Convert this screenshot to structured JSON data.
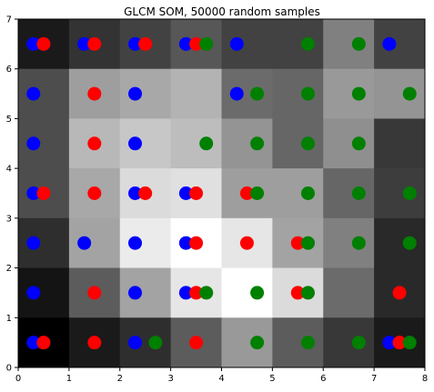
{
  "chart_data": {
    "type": "heatmap",
    "title": "GLCM SOM, 50000 random samples",
    "xlabel": "",
    "ylabel": "",
    "xlim": [
      0,
      8
    ],
    "ylim": [
      0,
      7
    ],
    "xticks": [
      "0",
      "1",
      "2",
      "3",
      "4",
      "5",
      "6",
      "7",
      "8"
    ],
    "yticks": [
      "0",
      "1",
      "2",
      "3",
      "4",
      "5",
      "6",
      "7"
    ],
    "grid": false,
    "colormap": "gray",
    "cells": [
      [
        0.1,
        0.2,
        0.26,
        0.34,
        0.26,
        0.26,
        0.5,
        0.26
      ],
      [
        0.3,
        0.62,
        0.66,
        0.7,
        0.42,
        0.4,
        0.6,
        0.58
      ],
      [
        0.3,
        0.72,
        0.78,
        0.74,
        0.58,
        0.4,
        0.56,
        0.22
      ],
      [
        0.3,
        0.66,
        0.86,
        0.88,
        0.62,
        0.62,
        0.4,
        0.24
      ],
      [
        0.18,
        0.64,
        0.92,
        1.0,
        0.9,
        0.64,
        0.5,
        0.16
      ],
      [
        0.08,
        0.36,
        0.64,
        0.9,
        1.0,
        0.86,
        0.42,
        0.16
      ],
      [
        0.0,
        0.1,
        0.18,
        0.36,
        0.6,
        0.36,
        0.22,
        0.1
      ]
    ],
    "series": [
      {
        "color": "#0000ff",
        "x": [
          0.3,
          1.3,
          2.3,
          3.3,
          4.3,
          7.3,
          0.3,
          2.3,
          4.3,
          0.3,
          2.3,
          0.3,
          2.3,
          3.3,
          0.3,
          1.3,
          2.3,
          3.3,
          0.3,
          2.3,
          3.3,
          0.3,
          2.3,
          7.3
        ],
        "y": [
          6.5,
          6.5,
          6.5,
          6.5,
          6.5,
          6.5,
          5.5,
          5.5,
          5.5,
          4.5,
          4.5,
          3.5,
          3.5,
          3.5,
          2.5,
          2.5,
          2.5,
          2.5,
          1.5,
          1.5,
          1.5,
          0.5,
          0.5,
          0.5
        ]
      },
      {
        "color": "#ff0000",
        "x": [
          0.5,
          1.5,
          2.5,
          3.5,
          1.5,
          1.5,
          0.5,
          1.5,
          2.5,
          3.5,
          4.5,
          3.5,
          4.5,
          5.5,
          1.5,
          3.5,
          5.5,
          7.5,
          0.5,
          1.5,
          3.5,
          7.5
        ],
        "y": [
          6.5,
          6.5,
          6.5,
          6.5,
          5.5,
          4.5,
          3.5,
          3.5,
          3.5,
          3.5,
          3.5,
          2.5,
          2.5,
          2.5,
          1.5,
          1.5,
          1.5,
          1.5,
          0.5,
          0.5,
          0.5,
          0.5
        ]
      },
      {
        "color": "#008000",
        "x": [
          3.7,
          5.7,
          6.7,
          4.7,
          5.7,
          6.7,
          7.7,
          3.7,
          4.7,
          5.7,
          6.7,
          4.7,
          5.7,
          6.7,
          7.7,
          5.7,
          6.7,
          7.7,
          3.7,
          4.7,
          5.7,
          2.7,
          4.7,
          5.7,
          6.7,
          7.7
        ],
        "y": [
          6.5,
          6.5,
          6.5,
          5.5,
          5.5,
          5.5,
          5.5,
          4.5,
          4.5,
          4.5,
          4.5,
          3.5,
          3.5,
          3.5,
          3.5,
          2.5,
          2.5,
          2.5,
          1.5,
          1.5,
          1.5,
          0.5,
          0.5,
          0.5,
          0.5,
          0.5
        ]
      }
    ]
  }
}
